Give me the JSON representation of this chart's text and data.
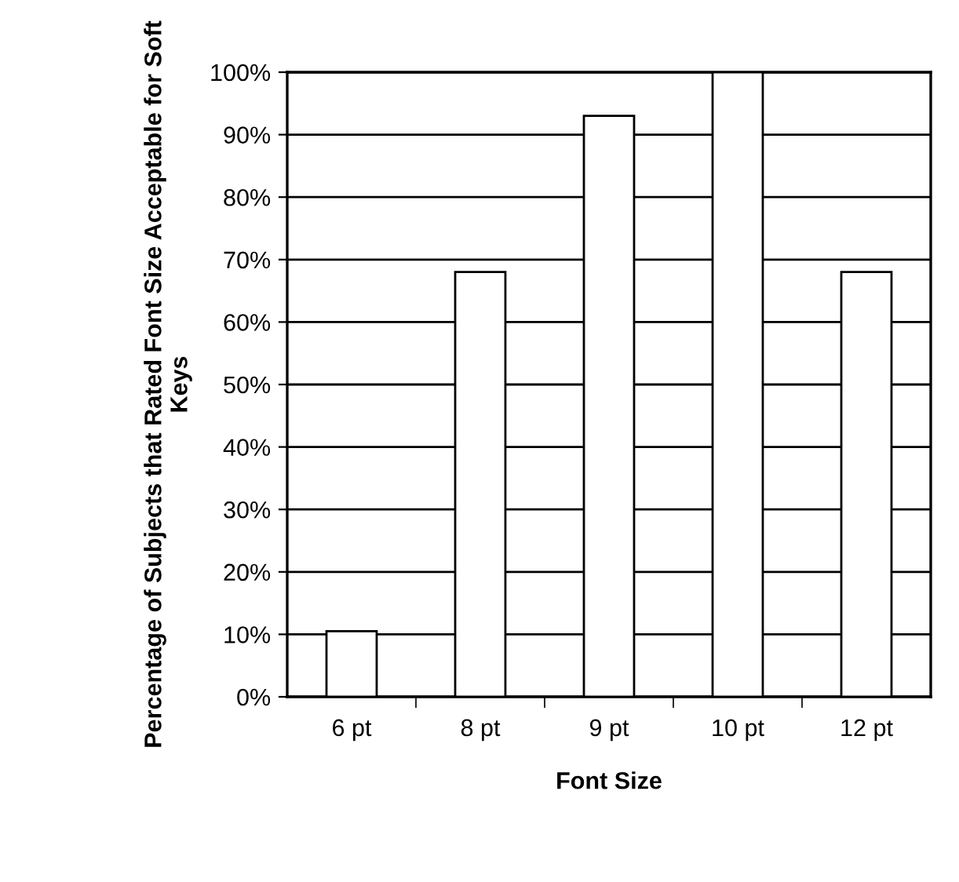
{
  "chart_data": {
    "type": "bar",
    "xlabel": "Font Size",
    "ylabel": "Percentage of Subjects that Rated Font Size Acceptable for Soft Keys",
    "categories": [
      "6 pt",
      "8 pt",
      "9 pt",
      "10 pt",
      "12 pt"
    ],
    "values": [
      10.5,
      68,
      93,
      100,
      68
    ],
    "color": "#ffffff",
    "ylim": [
      0,
      100
    ],
    "yticks": [
      {
        "value": 0,
        "label": "0%"
      },
      {
        "value": 10,
        "label": "10%"
      },
      {
        "value": 20,
        "label": "20%"
      },
      {
        "value": 30,
        "label": "30%"
      },
      {
        "value": 40,
        "label": "40%"
      },
      {
        "value": 50,
        "label": "50%"
      },
      {
        "value": 60,
        "label": "60%"
      },
      {
        "value": 70,
        "label": "70%"
      },
      {
        "value": 80,
        "label": "80%"
      },
      {
        "value": 90,
        "label": "90%"
      },
      {
        "value": 100,
        "label": "100%"
      }
    ],
    "grid": "y"
  }
}
